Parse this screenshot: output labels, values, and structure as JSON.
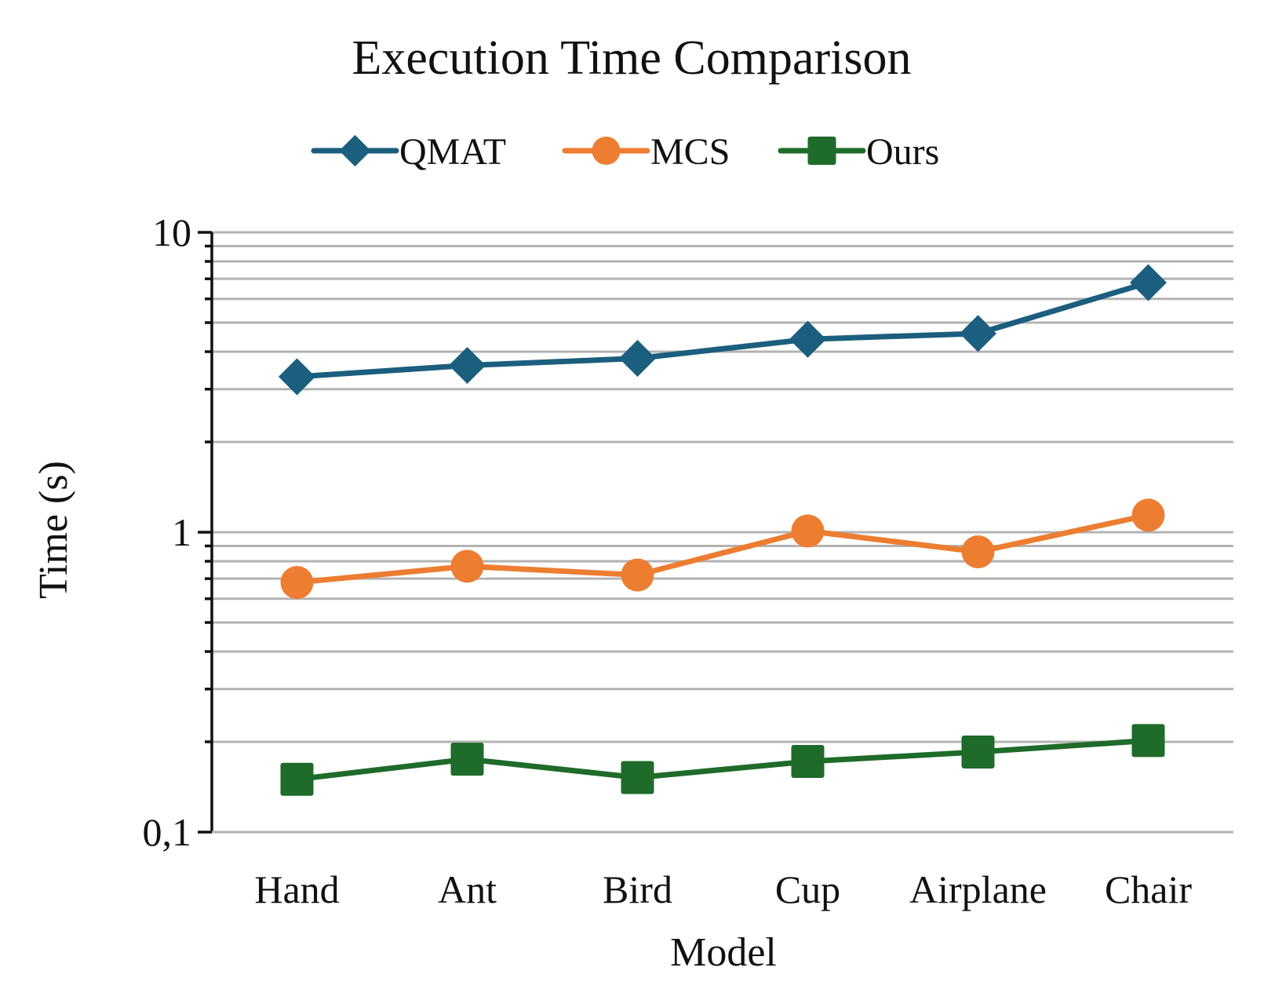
{
  "chart_data": {
    "type": "line",
    "title": "Execution Time Comparison",
    "xlabel": "Model",
    "ylabel": "Time (s)",
    "yscale": "log",
    "ylim": [
      0.1,
      10
    ],
    "yticks": [
      0.1,
      1,
      10
    ],
    "ytick_labels": [
      "0,1",
      "1",
      "10"
    ],
    "grid": true,
    "legend_position": "top",
    "categories": [
      "Hand",
      "Ant",
      "Bird",
      "Cup",
      "Airplane",
      "Chair"
    ],
    "series": [
      {
        "name": "QMAT",
        "color": "#1b5e7e",
        "marker": "diamond",
        "values": [
          3.3,
          3.6,
          3.8,
          4.4,
          4.6,
          6.8
        ]
      },
      {
        "name": "MCS",
        "color": "#ed7d31",
        "marker": "circle",
        "values": [
          0.68,
          0.77,
          0.72,
          1.01,
          0.86,
          1.14
        ]
      },
      {
        "name": "Ours",
        "color": "#1e6b2a",
        "marker": "square",
        "values": [
          0.15,
          0.175,
          0.152,
          0.172,
          0.185,
          0.202
        ]
      }
    ]
  }
}
